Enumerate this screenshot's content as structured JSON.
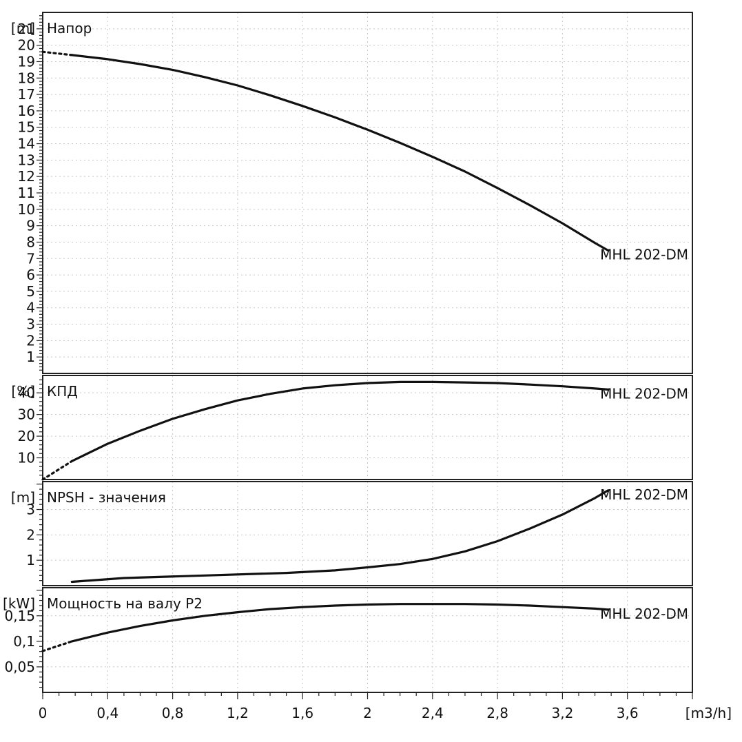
{
  "x_axis": {
    "unit": "[m3/h]",
    "ticks": [
      0,
      0.4,
      0.8,
      1.2,
      1.6,
      2,
      2.4,
      2.8,
      3.2,
      3.6
    ],
    "tick_labels": [
      "0",
      "0,4",
      "0,8",
      "1,2",
      "1,6",
      "2",
      "2,4",
      "2,8",
      "3,2",
      "3,6"
    ],
    "range": [
      0,
      4.0
    ]
  },
  "chart_data": [
    {
      "type": "line",
      "title": "Напор",
      "ylabel": "[m]",
      "ylim": [
        0,
        22
      ],
      "y_ticks": [
        1,
        2,
        3,
        4,
        5,
        6,
        7,
        8,
        9,
        10,
        11,
        12,
        13,
        14,
        15,
        16,
        17,
        18,
        19,
        20,
        21
      ],
      "y_tick_labels": [
        "1",
        "2",
        "3",
        "4",
        "5",
        "6",
        "7",
        "8",
        "9",
        "10",
        "11",
        "12",
        "13",
        "14",
        "15",
        "16",
        "17",
        "18",
        "19",
        "20",
        "21"
      ],
      "grid": true,
      "series": [
        {
          "name": "MHL 202-DM",
          "x": [
            0.18,
            0.4,
            0.6,
            0.8,
            1.0,
            1.2,
            1.4,
            1.6,
            1.8,
            2.0,
            2.2,
            2.4,
            2.6,
            2.8,
            3.0,
            3.2,
            3.4,
            3.48
          ],
          "y": [
            19.4,
            19.15,
            18.85,
            18.5,
            18.05,
            17.55,
            16.95,
            16.3,
            15.6,
            14.85,
            14.05,
            13.2,
            12.3,
            11.3,
            10.25,
            9.15,
            7.95,
            7.5
          ],
          "extrapolated": {
            "x": [
              0,
              0.18
            ],
            "y": [
              19.6,
              19.4
            ]
          }
        }
      ]
    },
    {
      "type": "line",
      "title": "КПД",
      "ylabel": "[%]",
      "ylim": [
        0,
        48
      ],
      "y_ticks": [
        10,
        20,
        30,
        40
      ],
      "y_tick_labels": [
        "10",
        "20",
        "30",
        "40"
      ],
      "grid": true,
      "series": [
        {
          "name": "MHL 202-DM",
          "x": [
            0.18,
            0.4,
            0.6,
            0.8,
            1.0,
            1.2,
            1.4,
            1.6,
            1.8,
            2.0,
            2.2,
            2.4,
            2.6,
            2.8,
            3.0,
            3.2,
            3.4,
            3.48
          ],
          "y": [
            8.5,
            16.5,
            22.5,
            28,
            32.5,
            36.5,
            39.5,
            42,
            43.5,
            44.5,
            45,
            45,
            44.8,
            44.5,
            43.8,
            43,
            42,
            41.5
          ],
          "extrapolated": {
            "x": [
              0,
              0.18
            ],
            "y": [
              0,
              8.5
            ]
          }
        }
      ]
    },
    {
      "type": "line",
      "title": "NPSH - значения",
      "ylabel": "[m]",
      "ylim": [
        0,
        4.1
      ],
      "y_ticks": [
        1,
        2,
        3
      ],
      "y_tick_labels": [
        "1",
        "2",
        "3"
      ],
      "grid": true,
      "series": [
        {
          "name": "MHL 202-DM",
          "x": [
            0.18,
            0.5,
            1.0,
            1.5,
            1.8,
            2.0,
            2.2,
            2.4,
            2.6,
            2.8,
            3.0,
            3.2,
            3.4,
            3.48
          ],
          "y": [
            0.15,
            0.3,
            0.4,
            0.5,
            0.6,
            0.72,
            0.85,
            1.05,
            1.35,
            1.75,
            2.25,
            2.8,
            3.45,
            3.75
          ]
        }
      ]
    },
    {
      "type": "line",
      "title": "Мощность на валу P2",
      "ylabel": "[kW]",
      "ylim": [
        0,
        0.205
      ],
      "y_ticks": [
        0.05,
        0.1,
        0.15
      ],
      "y_tick_labels": [
        "0,05",
        "0,1",
        "0,15"
      ],
      "grid": true,
      "series": [
        {
          "name": "MHL 202-DM",
          "x": [
            0.18,
            0.4,
            0.6,
            0.8,
            1.0,
            1.2,
            1.4,
            1.6,
            1.8,
            2.0,
            2.2,
            2.4,
            2.6,
            2.8,
            3.0,
            3.2,
            3.4,
            3.48
          ],
          "y": [
            0.1,
            0.117,
            0.13,
            0.141,
            0.15,
            0.157,
            0.163,
            0.167,
            0.17,
            0.172,
            0.173,
            0.173,
            0.173,
            0.172,
            0.17,
            0.167,
            0.164,
            0.162
          ],
          "extrapolated": {
            "x": [
              0,
              0.18
            ],
            "y": [
              0.081,
              0.1
            ]
          }
        }
      ]
    }
  ]
}
